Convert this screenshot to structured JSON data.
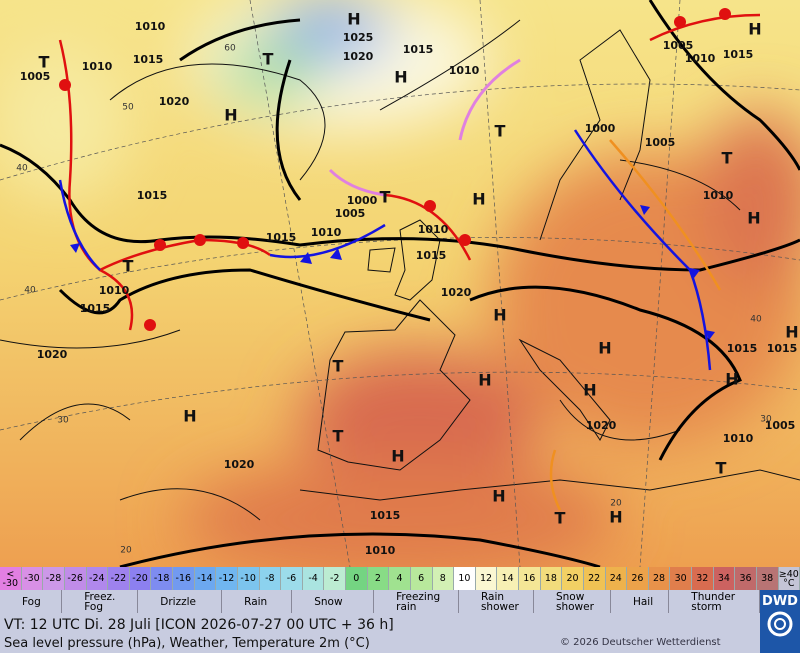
{
  "map": {
    "pressure_labels": [
      "1010",
      "1005",
      "1010",
      "1015",
      "1020",
      "1025",
      "1020",
      "1015",
      "1010",
      "1005",
      "1010",
      "1015",
      "1000",
      "1005",
      "1010",
      "1015",
      "1015",
      "1010",
      "1000",
      "1005",
      "1010",
      "1015",
      "1020",
      "1010",
      "1015",
      "1020",
      "1020",
      "1015",
      "1010",
      "1020",
      "1015",
      "1015",
      "1010",
      "1005"
    ],
    "centers": [
      "H",
      "T",
      "H",
      "H",
      "T",
      "T",
      "H",
      "H",
      "T",
      "H",
      "T",
      "H",
      "H",
      "H",
      "H",
      "T",
      "T",
      "H",
      "H",
      "T",
      "H",
      "T",
      "H",
      "H",
      "H",
      "T"
    ],
    "grid_labels": [
      "60",
      "50",
      "40",
      "40",
      "30",
      "20",
      "40",
      "30",
      "20"
    ]
  },
  "legend": {
    "temperature": {
      "labels": [
        "< -30",
        "-30",
        "-28",
        "-26",
        "-24",
        "-22",
        "-20",
        "-18",
        "-16",
        "-14",
        "-12",
        "-10",
        "-8",
        "-6",
        "-4",
        "-2",
        "0",
        "2",
        "4",
        "6",
        "8",
        "10",
        "12",
        "14",
        "16",
        "18",
        "20",
        "22",
        "24",
        "26",
        "28",
        "30",
        "32",
        "34",
        "36",
        "38",
        "≥40 °C"
      ],
      "colors": [
        "#e27fe2",
        "#d890e6",
        "#cc98e8",
        "#c08ce8",
        "#b088ec",
        "#9e82ee",
        "#8c80f0",
        "#7e8cf0",
        "#729af0",
        "#6ca8f0",
        "#70b6f0",
        "#7cc4ee",
        "#8cd2ee",
        "#9cdcea",
        "#aae4e0",
        "#bcecd2",
        "#74d482",
        "#88dc86",
        "#a0e290",
        "#b8e89c",
        "#d2f0b4",
        "#ffffff",
        "#fbf7d2",
        "#f7f0b4",
        "#f4e696",
        "#f2dc7c",
        "#f2d064",
        "#f0c254",
        "#eeb24c",
        "#eca24a",
        "#e8924a",
        "#e07e4c",
        "#d86c50",
        "#cc6260",
        "#c06a6a",
        "#b87474",
        "#c4c4d6"
      ]
    },
    "weather": [
      "Fog",
      "Freez. Fog",
      "Drizzle",
      "Rain",
      "Snow",
      "Freezing rain",
      "Rain shower",
      "Snow shower",
      "Hail",
      "Thunder storm"
    ],
    "logo": "DWD"
  },
  "footer": {
    "valid_time": "VT: 12 UTC Di.  28 Juli [ICON 2026-07-27  00 UTC + 36 h]",
    "description": "Sea level pressure (hPa), Weather, Temperature 2m (°C)",
    "copyright": "© 2026 Deutscher Wetterdienst"
  }
}
